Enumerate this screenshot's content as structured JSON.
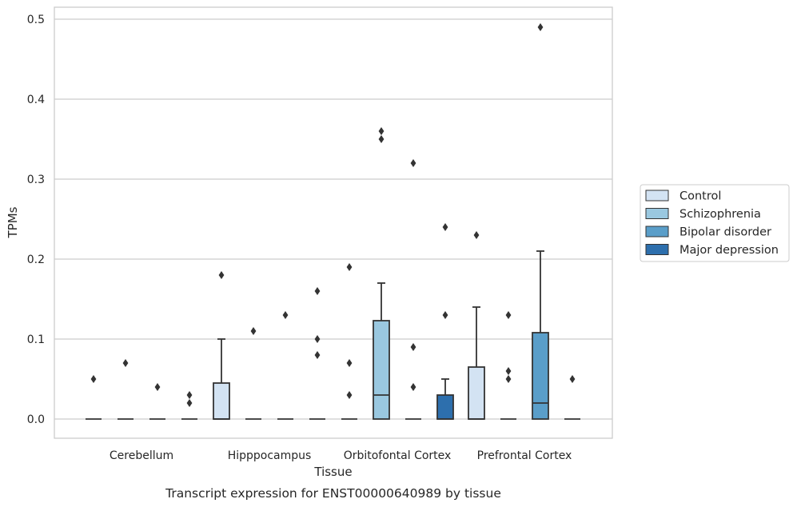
{
  "chart_data": {
    "type": "box",
    "caption": "Transcript expression for ENST00000640989 by tissue",
    "xlabel": "Tissue",
    "ylabel": "TPMs",
    "ylim": [
      -0.024,
      0.516
    ],
    "yticks": [
      0.0,
      0.1,
      0.2,
      0.3,
      0.4,
      0.5
    ],
    "ytick_labels": [
      "0.0",
      "0.1",
      "0.2",
      "0.3",
      "0.4",
      "0.5"
    ],
    "grid": "horizontal",
    "legend_position": "right",
    "categories": [
      "Cerebellum",
      "Hipppocampus",
      "Orbitofontal Cortex",
      "Prefrontal Cortex"
    ],
    "series": [
      {
        "name": "Control",
        "color": "#d3e3f3",
        "boxes": [
          {
            "q1": 0,
            "median": 0,
            "q3": 0,
            "whisker_low": 0,
            "whisker_high": 0,
            "outliers": [
              0.05
            ]
          },
          {
            "q1": 0,
            "median": 0,
            "q3": 0.045,
            "whisker_low": 0,
            "whisker_high": 0.1,
            "outliers": [
              0.18
            ]
          },
          {
            "q1": 0,
            "median": 0,
            "q3": 0,
            "whisker_low": 0,
            "whisker_high": 0,
            "outliers": [
              0.19,
              0.07,
              0.03
            ]
          },
          {
            "q1": 0,
            "median": 0,
            "q3": 0.065,
            "whisker_low": 0,
            "whisker_high": 0.14,
            "outliers": [
              0.23
            ]
          }
        ]
      },
      {
        "name": "Schizophrenia",
        "color": "#9ac8e0",
        "boxes": [
          {
            "q1": 0,
            "median": 0,
            "q3": 0,
            "whisker_low": 0,
            "whisker_high": 0,
            "outliers": [
              0.07
            ]
          },
          {
            "q1": 0,
            "median": 0,
            "q3": 0,
            "whisker_low": 0,
            "whisker_high": 0,
            "outliers": [
              0.11
            ]
          },
          {
            "q1": 0,
            "median": 0.03,
            "q3": 0.123,
            "whisker_low": 0,
            "whisker_high": 0.17,
            "outliers": [
              0.36,
              0.35
            ]
          },
          {
            "q1": 0,
            "median": 0,
            "q3": 0,
            "whisker_low": 0,
            "whisker_high": 0,
            "outliers": [
              0.13,
              0.06,
              0.05
            ]
          }
        ]
      },
      {
        "name": "Bipolar disorder",
        "color": "#5a9ec9",
        "boxes": [
          {
            "q1": 0,
            "median": 0,
            "q3": 0,
            "whisker_low": 0,
            "whisker_high": 0,
            "outliers": [
              0.04
            ]
          },
          {
            "q1": 0,
            "median": 0,
            "q3": 0,
            "whisker_low": 0,
            "whisker_high": 0,
            "outliers": [
              0.13
            ]
          },
          {
            "q1": 0,
            "median": 0,
            "q3": 0,
            "whisker_low": 0,
            "whisker_high": 0,
            "outliers": [
              0.32,
              0.09,
              0.04
            ]
          },
          {
            "q1": 0,
            "median": 0.02,
            "q3": 0.108,
            "whisker_low": 0,
            "whisker_high": 0.21,
            "outliers": [
              0.49
            ]
          }
        ]
      },
      {
        "name": "Major depression",
        "color": "#2d6fad",
        "boxes": [
          {
            "q1": 0,
            "median": 0,
            "q3": 0,
            "whisker_low": 0,
            "whisker_high": 0,
            "outliers": [
              0.03,
              0.02
            ]
          },
          {
            "q1": 0,
            "median": 0,
            "q3": 0,
            "whisker_low": 0,
            "whisker_high": 0,
            "outliers": [
              0.16,
              0.1,
              0.08
            ]
          },
          {
            "q1": 0,
            "median": 0,
            "q3": 0.03,
            "whisker_low": 0,
            "whisker_high": 0.05,
            "outliers": [
              0.24,
              0.13
            ]
          },
          {
            "q1": 0,
            "median": 0,
            "q3": 0,
            "whisker_low": 0,
            "whisker_high": 0,
            "outliers": [
              0.05
            ]
          }
        ]
      }
    ]
  }
}
